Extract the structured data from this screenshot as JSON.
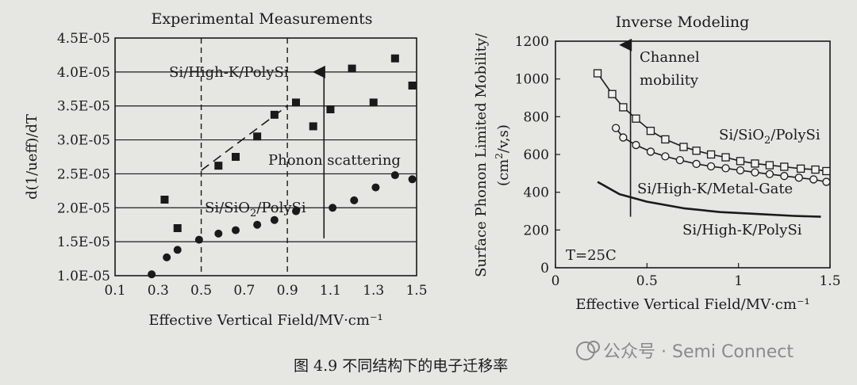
{
  "chart_data": [
    {
      "type": "scatter",
      "title": "Experimental Measurements",
      "xlabel": "Effective Vertical Field/MV·cm⁻¹",
      "ylabel": "d(1/ueff)/dT",
      "xlim": [
        0.1,
        1.5
      ],
      "ylim": [
        1e-05,
        4.5e-05
      ],
      "xticks": [
        0.1,
        0.3,
        0.5,
        0.7,
        0.9,
        1.1,
        1.3,
        1.5
      ],
      "xtick_labels": [
        "0.1",
        "0.3",
        "0.5",
        "0.7",
        "0.9",
        "1.1",
        "1.3",
        "1.5"
      ],
      "yticks": [
        1e-05,
        1.5e-05,
        2e-05,
        2.5e-05,
        3e-05,
        3.5e-05,
        4e-05,
        4.5e-05
      ],
      "ytick_labels": [
        "1.0E-05",
        "1.5E-05",
        "2.0E-05",
        "2.5E-05",
        "3.0E-05",
        "3.5E-05",
        "4.0E-05",
        "4.5E-05"
      ],
      "grid": "horizontal",
      "series": [
        {
          "name": "Si/High-K/PolySi",
          "marker": "square",
          "x": [
            0.33,
            0.39,
            0.58,
            0.66,
            0.76,
            0.84,
            0.94,
            1.02,
            1.1,
            1.2,
            1.3,
            1.4,
            1.48
          ],
          "y": [
            2.12e-05,
            1.7e-05,
            2.62e-05,
            2.75e-05,
            3.05e-05,
            3.37e-05,
            3.55e-05,
            3.2e-05,
            3.45e-05,
            4.05e-05,
            3.55e-05,
            4.2e-05,
            3.8e-05
          ]
        },
        {
          "name": "Si/SiO2/PolySi",
          "marker": "circle",
          "x": [
            0.27,
            0.34,
            0.39,
            0.49,
            0.58,
            0.66,
            0.76,
            0.84,
            0.94,
            1.11,
            1.21,
            1.31,
            1.4,
            1.48
          ],
          "y": [
            1.02e-05,
            1.27e-05,
            1.38e-05,
            1.53e-05,
            1.62e-05,
            1.67e-05,
            1.75e-05,
            1.82e-05,
            1.95e-05,
            2e-05,
            2.11e-05,
            2.3e-05,
            2.48e-05,
            2.42e-05
          ]
        }
      ],
      "guides": {
        "vertical_dashed_x": [
          0.5,
          0.9
        ],
        "trend_dashed": {
          "x": [
            0.5,
            0.9
          ],
          "y": [
            2.55e-05,
            3.5e-05
          ]
        },
        "arrow": {
          "x": 1.07,
          "y_from": 1.55e-05,
          "y_to": 4e-05
        }
      },
      "annotations": {
        "high_k_label": "Si/High-K/PolySi",
        "phonon_label": "Phonon scattering",
        "sio2_label_pre": "Si/SiO",
        "sio2_label_sub": "2",
        "sio2_label_post": "/PolySi"
      }
    },
    {
      "type": "line",
      "title": "Inverse Modeling",
      "xlabel": "Effective Vertical Field/MV·cm⁻¹",
      "ylabel_line1": "Surface Phonon Limited Mobility/",
      "ylabel_line2_pre": "(cm",
      "ylabel_line2_sup": "2",
      "ylabel_line2_post": "/v,s)",
      "xlim": [
        0,
        1.5
      ],
      "ylim": [
        0,
        1200
      ],
      "xticks": [
        0,
        0.5,
        1,
        1.5
      ],
      "xtick_labels": [
        "0",
        "0.5",
        "1",
        "1.5"
      ],
      "yticks": [
        0,
        200,
        400,
        600,
        800,
        1000,
        1200
      ],
      "ytick_labels": [
        "0",
        "200",
        "400",
        "600",
        "800",
        "1000",
        "1200"
      ],
      "series": [
        {
          "name": "Si/SiO2/PolySi",
          "marker": "square",
          "x": [
            0.23,
            0.31,
            0.37,
            0.44,
            0.52,
            0.6,
            0.7,
            0.77,
            0.85,
            0.93,
            1.01,
            1.09,
            1.17,
            1.25,
            1.34,
            1.42,
            1.48
          ],
          "y": [
            1030,
            920,
            850,
            790,
            725,
            680,
            640,
            620,
            600,
            585,
            565,
            552,
            543,
            535,
            525,
            520,
            512
          ]
        },
        {
          "name": "Si/High-K/Metal-Gate",
          "marker": "circle",
          "x": [
            0.33,
            0.37,
            0.44,
            0.52,
            0.6,
            0.68,
            0.77,
            0.85,
            0.93,
            1.01,
            1.09,
            1.17,
            1.25,
            1.33,
            1.41,
            1.48
          ],
          "y": [
            740,
            690,
            650,
            615,
            590,
            570,
            550,
            537,
            527,
            516,
            505,
            496,
            486,
            477,
            468,
            455
          ]
        },
        {
          "name": "Si/High-K/PolySi",
          "marker": "none",
          "x": [
            0.23,
            0.35,
            0.5,
            0.7,
            0.9,
            1.1,
            1.3,
            1.45
          ],
          "y": [
            455,
            390,
            350,
            315,
            295,
            285,
            275,
            270
          ]
        }
      ],
      "guides": {
        "arrow": {
          "x": 0.41,
          "y_from": 270,
          "y_to": 1180
        }
      },
      "annotations": {
        "channel_line1": "Channel",
        "channel_line2": "mobility",
        "sio2_label_pre": "Si/SiO",
        "sio2_label_sub": "2",
        "sio2_label_post": "/PolySi",
        "metal_gate_label": "Si/High-K/Metal-Gate",
        "high_k_label": "Si/High-K/PolySi",
        "temperature_label": "T=25C"
      }
    }
  ],
  "caption": "图 4.9   不同结构下的电子迁移率",
  "watermark": "公众号 · Semi Connect"
}
